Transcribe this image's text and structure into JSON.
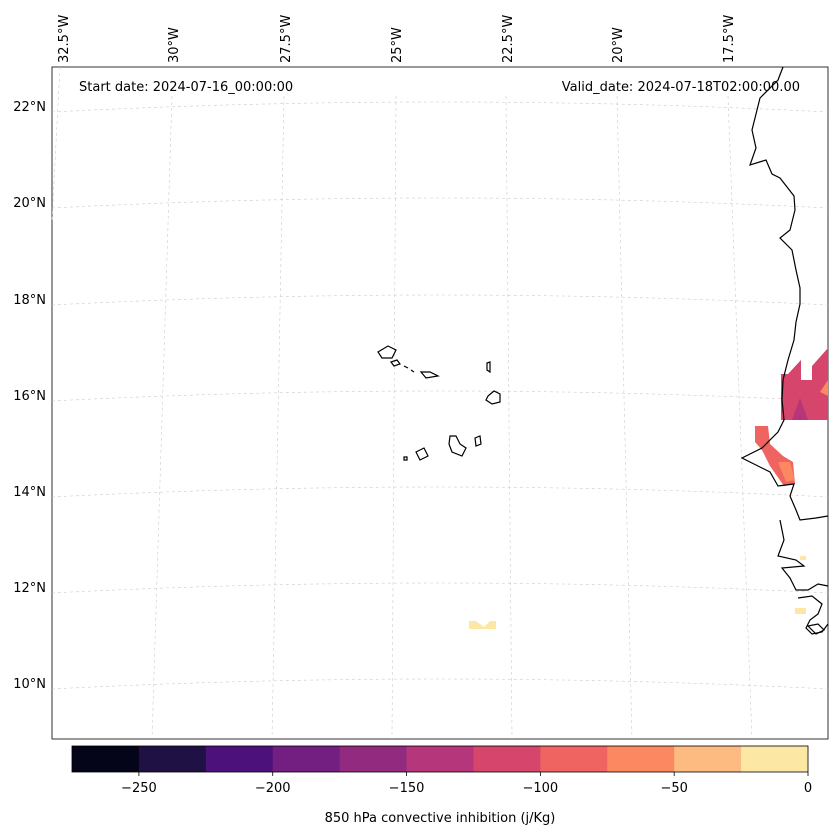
{
  "map": {
    "start_date": "Start date: 2024-07-16_00:00:00",
    "valid_date": "Valid_date: 2024-07-18T02:00:00.00",
    "lon_labels": [
      "32.5°W",
      "30°W",
      "27.5°W",
      "25°W",
      "22.5°W",
      "20°W",
      "17.5°W"
    ],
    "lat_labels": [
      "22°N",
      "20°N",
      "18°N",
      "16°N",
      "14°N",
      "12°N",
      "10°N"
    ]
  },
  "colorbar": {
    "label": "850 hPa convective inhibition (j/Kg)",
    "ticks": [
      "−250",
      "−200",
      "−150",
      "−100",
      "−50",
      "0"
    ],
    "tick_values": [
      -250,
      -200,
      -150,
      -100,
      -50,
      0
    ],
    "range": [
      -275,
      0
    ],
    "levels": [
      -275,
      -250,
      -225,
      -200,
      -175,
      -150,
      -125,
      -100,
      -75,
      -50,
      -25,
      0
    ],
    "colors": [
      "#05051a",
      "#1f1144",
      "#4d117b",
      "#721f81",
      "#922a7f",
      "#b5367a",
      "#d6456c",
      "#ef6360",
      "#fb8861",
      "#febb81",
      "#fde7a4"
    ]
  }
}
